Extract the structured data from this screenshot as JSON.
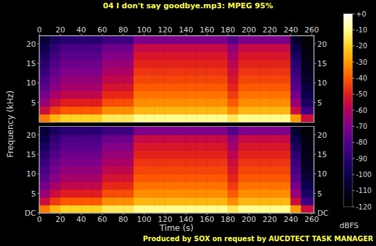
{
  "chart_data": [
    {
      "type": "heatmap",
      "title": "04 I don't say goodbye.mp3: MPEG 95%",
      "y_label": "Frequency (kHz)",
      "xlim": [
        0,
        262
      ],
      "xticks": [
        0,
        20,
        40,
        60,
        80,
        100,
        120,
        140,
        160,
        180,
        200,
        220,
        240,
        260
      ],
      "ylim": [
        0,
        22.05
      ],
      "yticks": [
        5,
        10,
        15,
        20
      ],
      "grid": false,
      "x_bins": [
        0,
        10,
        20,
        30,
        40,
        50,
        60,
        70,
        80,
        90,
        100,
        110,
        120,
        130,
        140,
        150,
        160,
        170,
        180,
        190,
        200,
        210,
        220,
        230,
        240,
        250,
        262
      ],
      "y_bins": [
        0,
        2,
        4,
        6,
        8,
        10,
        12,
        14,
        16,
        18,
        20,
        22.05
      ],
      "cells": [
        [
          -35,
          -25,
          -20,
          -20,
          -20,
          -20,
          -15,
          -15,
          -15,
          -10,
          -10,
          -10,
          -10,
          -10,
          -10,
          -10,
          -10,
          -10,
          -15,
          -10,
          -10,
          -10,
          -10,
          -10,
          -30,
          -55
        ],
        [
          -55,
          -45,
          -40,
          -40,
          -40,
          -40,
          -32,
          -32,
          -32,
          -25,
          -25,
          -25,
          -25,
          -25,
          -25,
          -25,
          -25,
          -25,
          -32,
          -25,
          -25,
          -25,
          -25,
          -25,
          -55,
          -85
        ],
        [
          -65,
          -55,
          -50,
          -50,
          -50,
          -50,
          -42,
          -42,
          -42,
          -32,
          -32,
          -32,
          -32,
          -32,
          -32,
          -32,
          -32,
          -32,
          -40,
          -32,
          -32,
          -32,
          -32,
          -32,
          -65,
          -95
        ],
        [
          -72,
          -62,
          -57,
          -57,
          -57,
          -57,
          -48,
          -48,
          -48,
          -36,
          -36,
          -36,
          -36,
          -36,
          -36,
          -36,
          -36,
          -36,
          -45,
          -36,
          -36,
          -36,
          -36,
          -36,
          -72,
          -100
        ],
        [
          -78,
          -68,
          -62,
          -62,
          -62,
          -62,
          -53,
          -53,
          -53,
          -40,
          -40,
          -40,
          -40,
          -40,
          -40,
          -40,
          -40,
          -40,
          -49,
          -40,
          -40,
          -40,
          -40,
          -40,
          -78,
          -104
        ],
        [
          -82,
          -72,
          -66,
          -66,
          -66,
          -66,
          -57,
          -57,
          -57,
          -43,
          -43,
          -43,
          -43,
          -43,
          -43,
          -43,
          -43,
          -43,
          -52,
          -43,
          -43,
          -43,
          -43,
          -43,
          -82,
          -108
        ],
        [
          -86,
          -76,
          -70,
          -70,
          -70,
          -70,
          -61,
          -61,
          -61,
          -46,
          -46,
          -46,
          -46,
          -46,
          -46,
          -46,
          -46,
          -46,
          -55,
          -46,
          -46,
          -46,
          -46,
          -46,
          -86,
          -110
        ],
        [
          -90,
          -80,
          -74,
          -74,
          -74,
          -74,
          -65,
          -65,
          -65,
          -49,
          -49,
          -49,
          -49,
          -49,
          -49,
          -49,
          -49,
          -49,
          -58,
          -49,
          -49,
          -49,
          -49,
          -49,
          -90,
          -112
        ],
        [
          -95,
          -84,
          -78,
          -78,
          -78,
          -78,
          -69,
          -69,
          -69,
          -52,
          -52,
          -52,
          -52,
          -52,
          -52,
          -52,
          -52,
          -52,
          -62,
          -52,
          -52,
          -52,
          -52,
          -52,
          -95,
          -114
        ],
        [
          -100,
          -88,
          -82,
          -82,
          -82,
          -82,
          -74,
          -74,
          -74,
          -56,
          -56,
          -56,
          -56,
          -56,
          -56,
          -56,
          -56,
          -56,
          -66,
          -56,
          -56,
          -56,
          -56,
          -56,
          -100,
          -116
        ],
        [
          -105,
          -95,
          -90,
          -90,
          -90,
          -90,
          -85,
          -85,
          -85,
          -70,
          -70,
          -70,
          -70,
          -70,
          -70,
          -70,
          -70,
          -70,
          -80,
          -70,
          -70,
          -70,
          -70,
          -70,
          -108,
          -118
        ]
      ],
      "colorbar": {
        "range": [
          -120,
          0
        ],
        "label": "dBFS",
        "ticks": [
          {
            "value": 0,
            "label": "+0"
          },
          -10,
          -20,
          -30,
          -40,
          -50,
          -60,
          -70,
          -80,
          -90,
          -100,
          -110,
          -120
        ]
      }
    },
    {
      "type": "heatmap",
      "x_label": "Time (s)",
      "annotations": [
        "Produced by SOX on request by AUCDTECT TASK MANAGER"
      ],
      "xlim": [
        0,
        262
      ],
      "xticks": [
        0,
        20,
        40,
        60,
        80,
        100,
        120,
        140,
        160,
        180,
        200,
        220,
        240,
        260
      ],
      "ylim": [
        0,
        22.05
      ],
      "yticks": [
        {
          "value": 0,
          "label": "DC"
        },
        5,
        10,
        15,
        20
      ],
      "grid": false,
      "x_bins": [
        0,
        10,
        20,
        30,
        40,
        50,
        60,
        70,
        80,
        90,
        100,
        110,
        120,
        130,
        140,
        150,
        160,
        170,
        180,
        190,
        200,
        210,
        220,
        230,
        240,
        250,
        262
      ],
      "y_bins": [
        0,
        2,
        4,
        6,
        8,
        10,
        12,
        14,
        16,
        18,
        20,
        22.05
      ],
      "cells": [
        [
          -35,
          -25,
          -20,
          -20,
          -20,
          -20,
          -15,
          -15,
          -15,
          -10,
          -10,
          -10,
          -10,
          -10,
          -10,
          -10,
          -10,
          -10,
          -15,
          -10,
          -10,
          -10,
          -10,
          -10,
          -30,
          -55
        ],
        [
          -55,
          -45,
          -40,
          -40,
          -40,
          -40,
          -32,
          -32,
          -32,
          -25,
          -25,
          -25,
          -25,
          -25,
          -25,
          -25,
          -25,
          -25,
          -32,
          -25,
          -25,
          -25,
          -25,
          -25,
          -55,
          -85
        ],
        [
          -65,
          -55,
          -50,
          -50,
          -50,
          -50,
          -42,
          -42,
          -42,
          -32,
          -32,
          -32,
          -32,
          -32,
          -32,
          -32,
          -32,
          -32,
          -40,
          -32,
          -32,
          -32,
          -32,
          -32,
          -65,
          -95
        ],
        [
          -72,
          -62,
          -57,
          -57,
          -57,
          -57,
          -48,
          -48,
          -48,
          -36,
          -36,
          -36,
          -36,
          -36,
          -36,
          -36,
          -36,
          -36,
          -45,
          -36,
          -36,
          -36,
          -36,
          -36,
          -72,
          -100
        ],
        [
          -78,
          -68,
          -62,
          -62,
          -62,
          -62,
          -53,
          -53,
          -53,
          -40,
          -40,
          -40,
          -40,
          -40,
          -40,
          -40,
          -40,
          -40,
          -49,
          -40,
          -40,
          -40,
          -40,
          -40,
          -78,
          -104
        ],
        [
          -82,
          -72,
          -66,
          -66,
          -66,
          -66,
          -57,
          -57,
          -57,
          -43,
          -43,
          -43,
          -43,
          -43,
          -43,
          -43,
          -43,
          -43,
          -52,
          -43,
          -43,
          -43,
          -43,
          -43,
          -82,
          -108
        ],
        [
          -86,
          -76,
          -70,
          -70,
          -70,
          -70,
          -61,
          -61,
          -61,
          -46,
          -46,
          -46,
          -46,
          -46,
          -46,
          -46,
          -46,
          -46,
          -55,
          -46,
          -46,
          -46,
          -46,
          -46,
          -86,
          -110
        ],
        [
          -90,
          -80,
          -74,
          -74,
          -74,
          -74,
          -65,
          -65,
          -65,
          -49,
          -49,
          -49,
          -49,
          -49,
          -49,
          -49,
          -49,
          -49,
          -58,
          -49,
          -49,
          -49,
          -49,
          -49,
          -90,
          -112
        ],
        [
          -95,
          -84,
          -78,
          -78,
          -78,
          -78,
          -69,
          -69,
          -69,
          -52,
          -52,
          -52,
          -52,
          -52,
          -52,
          -52,
          -52,
          -52,
          -62,
          -52,
          -52,
          -52,
          -52,
          -52,
          -95,
          -114
        ],
        [
          -100,
          -88,
          -82,
          -82,
          -82,
          -82,
          -74,
          -74,
          -74,
          -56,
          -56,
          -56,
          -56,
          -56,
          -56,
          -56,
          -56,
          -56,
          -66,
          -56,
          -56,
          -56,
          -56,
          -56,
          -100,
          -116
        ],
        [
          -105,
          -95,
          -90,
          -90,
          -90,
          -90,
          -85,
          -85,
          -85,
          -70,
          -70,
          -70,
          -70,
          -70,
          -70,
          -70,
          -70,
          -70,
          -80,
          -70,
          -70,
          -70,
          -70,
          -70,
          -108,
          -118
        ]
      ]
    }
  ]
}
